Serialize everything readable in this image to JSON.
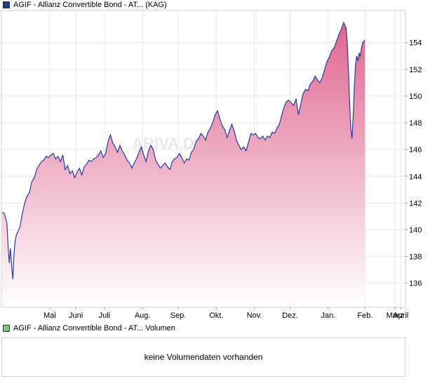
{
  "price_legend": {
    "label": "AGIF - Allianz Convertible Bond - AT... (KAG)",
    "color": "#1f3b8f"
  },
  "volume_legend": {
    "label": "AGIF - Allianz Convertible Bond - AT... Volumen",
    "color": "#7ec87e"
  },
  "watermark": "ARIVA.DE",
  "volume_message": "keine Volumendaten vorhanden",
  "colors": {
    "line": "#2a3a9c",
    "fill_top": "#e0668f",
    "fill_bottom": "#ffffff",
    "grid": "#e6e6e6",
    "frame": "#cfcfcf"
  },
  "chart_data": {
    "type": "area",
    "title": "",
    "xlabel": "",
    "ylabel": "",
    "grid": true,
    "ylim": [
      134.2,
      156.4
    ],
    "y_axis_position": "right",
    "y_ticks": [
      136,
      138,
      140,
      142,
      144,
      146,
      148,
      150,
      152,
      154
    ],
    "x_ticks": [
      {
        "label": "Mai",
        "x": 40
      },
      {
        "label": "Juni",
        "x": 62
      },
      {
        "label": "Juli",
        "x": 86
      },
      {
        "label": "Aug.",
        "x": 118
      },
      {
        "label": "Sep.",
        "x": 148
      },
      {
        "label": "Okt.",
        "x": 180
      },
      {
        "label": "Nov.",
        "x": 212
      },
      {
        "label": "Dez.",
        "x": 242
      },
      {
        "label": "Jan.",
        "x": 274
      },
      {
        "label": "Feb.",
        "x": 305
      },
      {
        "label": "März",
        "x": 330
      },
      {
        "label": "April",
        "x": 335
      }
    ],
    "x_range": [
      0,
      339
    ],
    "series": [
      {
        "values": [
          [
            0,
            141.3
          ],
          [
            2,
            141.2
          ],
          [
            4,
            140.5
          ],
          [
            5,
            138.8
          ],
          [
            6,
            137.5
          ],
          [
            7,
            138.6
          ],
          [
            8,
            137.3
          ],
          [
            9,
            136.3
          ],
          [
            10,
            138.2
          ],
          [
            11,
            139.2
          ],
          [
            12,
            139.6
          ],
          [
            13,
            139.8
          ],
          [
            15,
            140.2
          ],
          [
            17,
            141.2
          ],
          [
            19,
            142.0
          ],
          [
            21,
            142.5
          ],
          [
            23,
            142.8
          ],
          [
            25,
            143.6
          ],
          [
            27,
            143.9
          ],
          [
            29,
            144.5
          ],
          [
            31,
            144.8
          ],
          [
            33,
            145.1
          ],
          [
            35,
            145.2
          ],
          [
            37,
            145.5
          ],
          [
            39,
            145.4
          ],
          [
            41,
            145.6
          ],
          [
            43,
            145.7
          ],
          [
            45,
            145.3
          ],
          [
            47,
            145.5
          ],
          [
            49,
            145.1
          ],
          [
            51,
            145.6
          ],
          [
            53,
            144.5
          ],
          [
            55,
            144.8
          ],
          [
            57,
            144.2
          ],
          [
            59,
            144.4
          ],
          [
            61,
            143.9
          ],
          [
            63,
            144.3
          ],
          [
            65,
            144.6
          ],
          [
            67,
            144.1
          ],
          [
            69,
            144.7
          ],
          [
            71,
            144.9
          ],
          [
            73,
            145.2
          ],
          [
            75,
            145.1
          ],
          [
            77,
            145.3
          ],
          [
            79,
            145.4
          ],
          [
            81,
            145.6
          ],
          [
            83,
            145.9
          ],
          [
            85,
            145.4
          ],
          [
            87,
            145.7
          ],
          [
            89,
            146.6
          ],
          [
            91,
            147.1
          ],
          [
            93,
            146.5
          ],
          [
            95,
            146.2
          ],
          [
            97,
            145.8
          ],
          [
            99,
            146.3
          ],
          [
            101,
            145.9
          ],
          [
            103,
            145.6
          ],
          [
            105,
            145.2
          ],
          [
            107,
            145.0
          ],
          [
            109,
            144.6
          ],
          [
            111,
            145.0
          ],
          [
            113,
            145.3
          ],
          [
            115,
            145.8
          ],
          [
            117,
            146.2
          ],
          [
            119,
            145.6
          ],
          [
            121,
            145.1
          ],
          [
            123,
            145.9
          ],
          [
            125,
            146.3
          ],
          [
            127,
            146.0
          ],
          [
            129,
            145.2
          ],
          [
            131,
            144.9
          ],
          [
            133,
            144.6
          ],
          [
            135,
            144.8
          ],
          [
            137,
            145.0
          ],
          [
            139,
            144.7
          ],
          [
            141,
            144.5
          ],
          [
            143,
            145.1
          ],
          [
            145,
            145.3
          ],
          [
            147,
            145.4
          ],
          [
            149,
            145.7
          ],
          [
            151,
            145.4
          ],
          [
            153,
            145.0
          ],
          [
            155,
            145.3
          ],
          [
            157,
            145.2
          ],
          [
            159,
            145.8
          ],
          [
            161,
            146.0
          ],
          [
            163,
            146.6
          ],
          [
            165,
            146.8
          ],
          [
            167,
            147.2
          ],
          [
            169,
            147.0
          ],
          [
            171,
            146.7
          ],
          [
            173,
            147.3
          ],
          [
            175,
            147.6
          ],
          [
            177,
            148.0
          ],
          [
            179,
            148.6
          ],
          [
            181,
            148.9
          ],
          [
            183,
            148.3
          ],
          [
            185,
            147.8
          ],
          [
            187,
            147.5
          ],
          [
            189,
            146.9
          ],
          [
            191,
            147.4
          ],
          [
            193,
            147.9
          ],
          [
            195,
            147.4
          ],
          [
            197,
            146.7
          ],
          [
            199,
            146.3
          ],
          [
            201,
            146.0
          ],
          [
            203,
            146.2
          ],
          [
            205,
            145.9
          ],
          [
            207,
            146.5
          ],
          [
            209,
            147.2
          ],
          [
            211,
            147.1
          ],
          [
            213,
            147.2
          ],
          [
            215,
            146.9
          ],
          [
            217,
            146.8
          ],
          [
            219,
            147.0
          ],
          [
            221,
            146.7
          ],
          [
            223,
            147.0
          ],
          [
            225,
            146.9
          ],
          [
            227,
            147.3
          ],
          [
            229,
            147.2
          ],
          [
            231,
            147.6
          ],
          [
            233,
            147.9
          ],
          [
            235,
            148.6
          ],
          [
            237,
            149.2
          ],
          [
            239,
            149.6
          ],
          [
            241,
            149.7
          ],
          [
            243,
            149.5
          ],
          [
            245,
            149.3
          ],
          [
            247,
            149.8
          ],
          [
            249,
            148.6
          ],
          [
            251,
            149.4
          ],
          [
            253,
            150.2
          ],
          [
            255,
            150.5
          ],
          [
            257,
            150.4
          ],
          [
            259,
            150.9
          ],
          [
            261,
            151.1
          ],
          [
            263,
            151.5
          ],
          [
            265,
            151.2
          ],
          [
            267,
            151.0
          ],
          [
            269,
            151.4
          ],
          [
            271,
            152.0
          ],
          [
            273,
            152.6
          ],
          [
            275,
            152.9
          ],
          [
            277,
            153.4
          ],
          [
            279,
            153.6
          ],
          [
            281,
            154.1
          ],
          [
            283,
            154.6
          ],
          [
            285,
            155.0
          ],
          [
            287,
            155.5
          ],
          [
            289,
            155.1
          ],
          [
            290,
            154.0
          ],
          [
            291,
            152.0
          ],
          [
            292,
            149.5
          ],
          [
            293,
            147.6
          ],
          [
            294,
            146.8
          ],
          [
            295,
            148.5
          ],
          [
            296,
            150.8
          ],
          [
            297,
            152.4
          ],
          [
            298,
            153.0
          ],
          [
            299,
            152.6
          ],
          [
            300,
            153.2
          ],
          [
            301,
            153.0
          ],
          [
            302,
            153.6
          ],
          [
            303,
            154.0
          ],
          [
            305,
            154.2
          ]
        ]
      }
    ]
  }
}
